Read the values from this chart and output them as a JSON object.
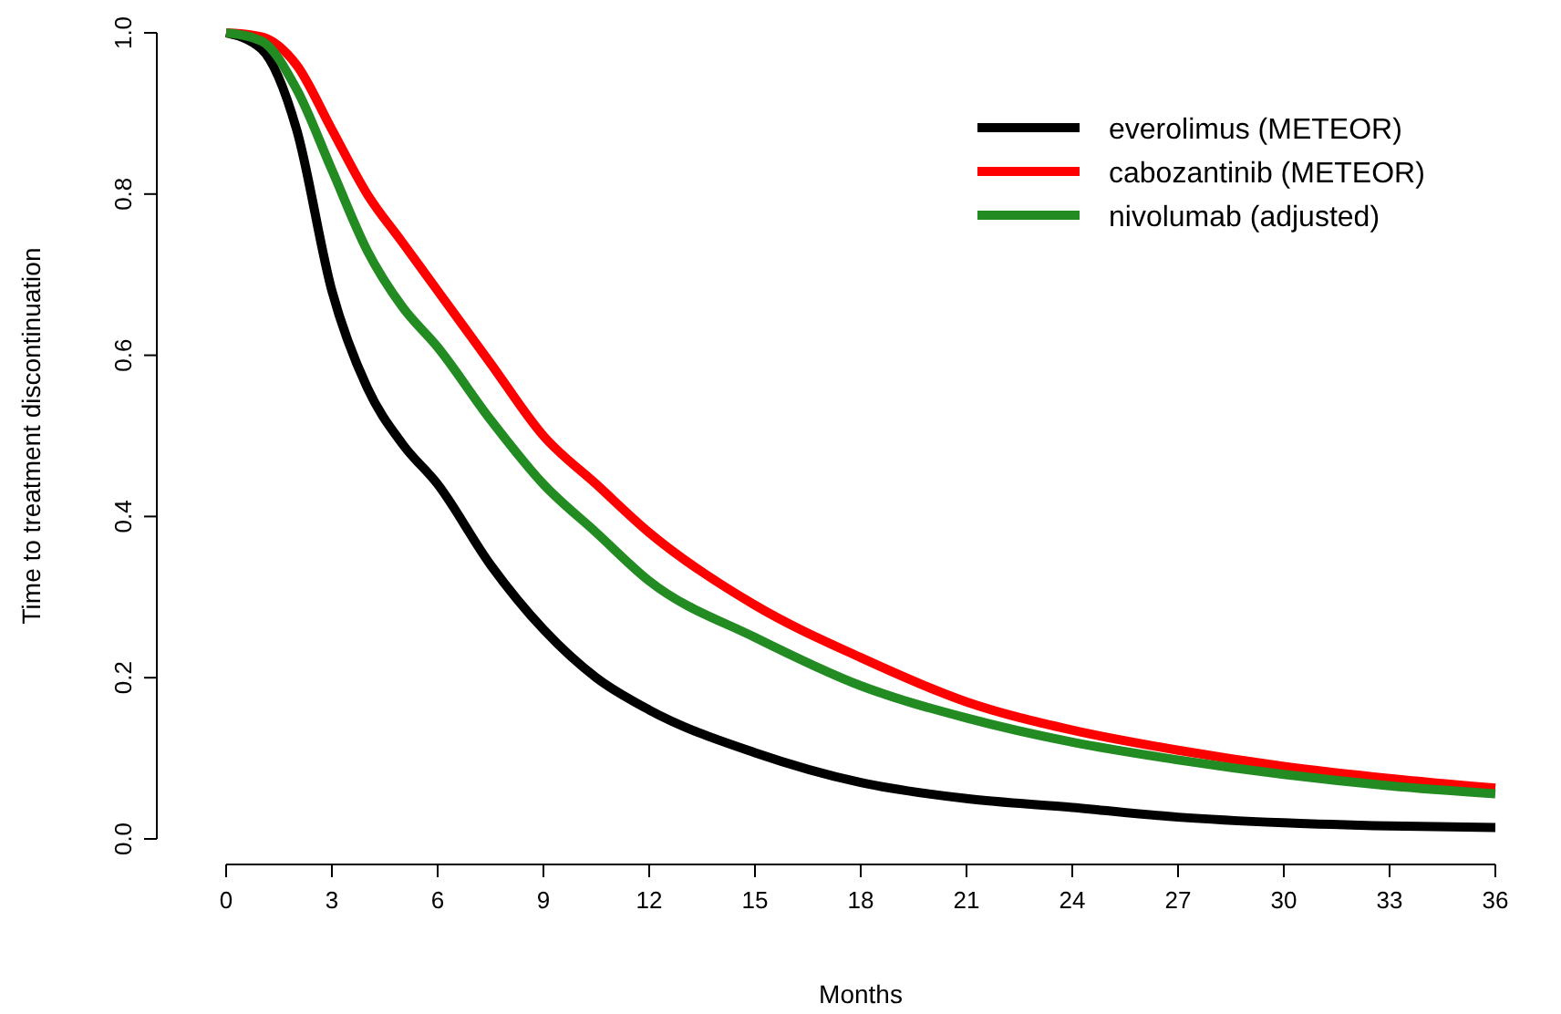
{
  "chart_data": {
    "type": "line",
    "xlabel": "Months",
    "ylabel": "Time to treatment discontinuation",
    "x": [
      0,
      1,
      2,
      3,
      4,
      5,
      6,
      7.5,
      9,
      10.5,
      12,
      15,
      18,
      21,
      24,
      27,
      30,
      33,
      36
    ],
    "xlim": [
      0,
      36
    ],
    "xticks": [
      0,
      3,
      6,
      9,
      12,
      15,
      18,
      21,
      24,
      27,
      30,
      33,
      36
    ],
    "ylim": [
      0,
      1
    ],
    "yticks": [
      {
        "value": 0,
        "label": "0.0"
      },
      0.2,
      0.4,
      0.6,
      0.8,
      {
        "value": 1,
        "label": "1.0"
      }
    ],
    "legend": "top right",
    "grid": false,
    "line_style": "solid",
    "series": [
      {
        "name": "everolimus (METEOR)",
        "color": "#000000",
        "values": [
          1,
          0.98,
          0.88,
          0.68,
          0.56,
          0.49,
          0.44,
          0.34,
          0.26,
          0.2,
          0.16,
          0.107,
          0.07,
          0.05,
          0.039,
          0.027,
          0.02,
          0.016,
          0.014
        ]
      },
      {
        "name": "cabozantinib (METEOR)",
        "color": "#ff0000",
        "values": [
          1,
          0.995,
          0.96,
          0.88,
          0.8,
          0.74,
          0.68,
          0.59,
          0.5,
          0.44,
          0.38,
          0.29,
          0.225,
          0.17,
          0.135,
          0.11,
          0.09,
          0.075,
          0.063
        ]
      },
      {
        "name": "nivolumab (adjusted)",
        "color": "#228b22",
        "values": [
          1,
          0.99,
          0.93,
          0.83,
          0.73,
          0.66,
          0.61,
          0.52,
          0.44,
          0.38,
          0.32,
          0.25,
          0.19,
          0.15,
          0.12,
          0.098,
          0.08,
          0.066,
          0.056
        ]
      }
    ]
  }
}
